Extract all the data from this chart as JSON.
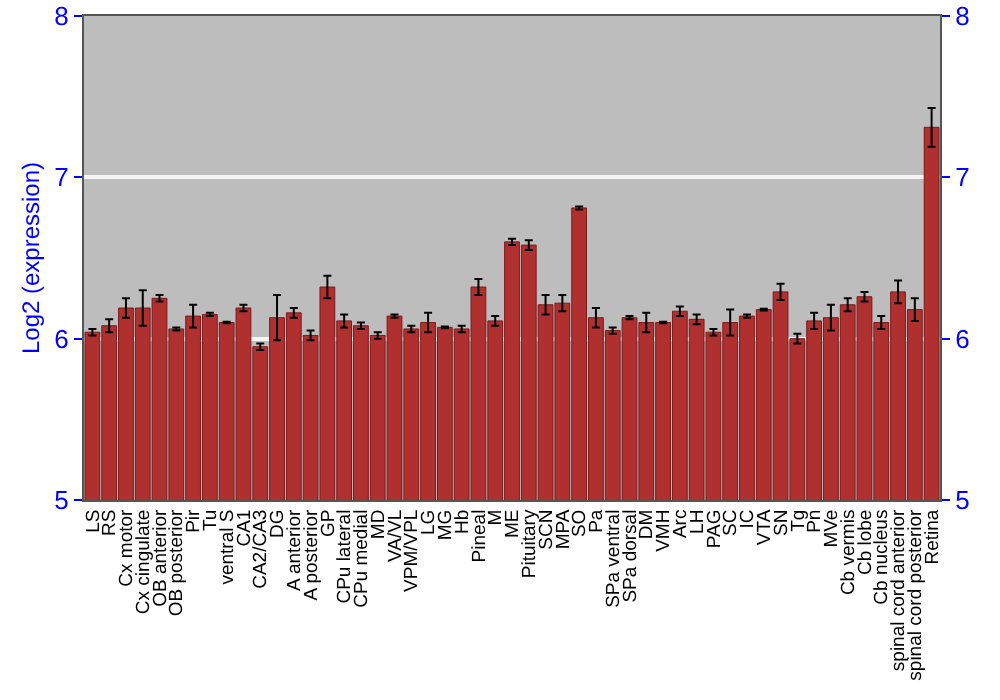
{
  "chart_data": {
    "type": "bar",
    "ylabel": "Log2 (expression)",
    "categories": [
      "LS",
      "RS",
      "Cx motor",
      "Cx cingulate",
      "OB anterior",
      "OB posterior",
      "Pir",
      "Tu",
      "ventral S",
      "CA1",
      "CA2/CA3",
      "DG",
      "A anterior",
      "A posterior",
      "GP",
      "CPu lateral",
      "CPu medial",
      "MD",
      "VA/VL",
      "VPM/VPL",
      "LG",
      "MG",
      "Hb",
      "Pineal",
      "M",
      "ME",
      "Pituitary",
      "SCN",
      "MPA",
      "SO",
      "Pa",
      "SPa ventral",
      "SPa dorsal",
      "DM",
      "VMH",
      "Arc",
      "LH",
      "PAG",
      "SC",
      "IC",
      "VTA",
      "SN",
      "Tg",
      "Pn",
      "MVe",
      "Cb vermis",
      "Cb lobe",
      "Cb nucleus",
      "spinal cord anterior",
      "spinal cord posterior",
      "Retina"
    ],
    "values": [
      6.04,
      6.08,
      6.19,
      6.19,
      6.25,
      6.06,
      6.14,
      6.15,
      6.1,
      6.19,
      5.95,
      6.13,
      6.16,
      6.02,
      6.32,
      6.11,
      6.08,
      6.02,
      6.14,
      6.06,
      6.1,
      6.07,
      6.06,
      6.32,
      6.11,
      6.6,
      6.58,
      6.21,
      6.22,
      6.81,
      6.13,
      6.05,
      6.13,
      6.1,
      6.1,
      6.17,
      6.12,
      6.04,
      6.1,
      6.14,
      6.18,
      6.29,
      6.0,
      6.11,
      6.13,
      6.21,
      6.26,
      6.1,
      6.29,
      6.18,
      7.31
    ],
    "errors": [
      0.02,
      0.04,
      0.06,
      0.11,
      0.02,
      0.01,
      0.07,
      0.01,
      0.005,
      0.02,
      0.02,
      0.14,
      0.03,
      0.03,
      0.07,
      0.04,
      0.02,
      0.02,
      0.01,
      0.02,
      0.06,
      0.005,
      0.02,
      0.05,
      0.03,
      0.02,
      0.03,
      0.06,
      0.05,
      0.01,
      0.06,
      0.02,
      0.01,
      0.06,
      0.005,
      0.03,
      0.03,
      0.02,
      0.08,
      0.01,
      0.005,
      0.05,
      0.03,
      0.05,
      0.08,
      0.04,
      0.03,
      0.04,
      0.07,
      0.07,
      0.12
    ],
    "color": "#b03030",
    "ylim": [
      5,
      8
    ],
    "yticks": [
      5,
      6,
      7,
      8
    ],
    "y2lim": [
      5,
      8
    ],
    "y2ticks": [
      5,
      6,
      7,
      8
    ],
    "grid": "y"
  }
}
